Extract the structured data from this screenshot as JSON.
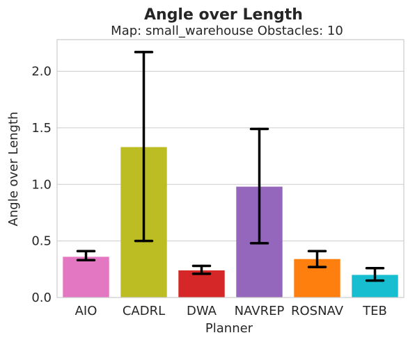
{
  "chart_data": {
    "type": "bar",
    "title": "Angle over Length",
    "subtitle": "Map: small_warehouse Obstacles: 10",
    "xlabel": "Planner",
    "ylabel": "Angle over Length",
    "ylim": [
      0,
      2.28
    ],
    "yticks": [
      "0.0",
      "0.5",
      "1.0",
      "1.5",
      "2.0"
    ],
    "grid": "horizontal",
    "categories": [
      "AIO",
      "CADRL",
      "DWA",
      "NAVREP",
      "ROSNAV",
      "TEB"
    ],
    "values": [
      0.36,
      1.33,
      0.24,
      0.98,
      0.34,
      0.2
    ],
    "error_low": [
      0.33,
      0.5,
      0.21,
      0.48,
      0.27,
      0.15
    ],
    "error_high": [
      0.41,
      2.17,
      0.28,
      1.49,
      0.41,
      0.26
    ],
    "colors": [
      "#e377c2",
      "#bcbd22",
      "#d62728",
      "#9467bd",
      "#ff7f0e",
      "#17becf"
    ]
  }
}
